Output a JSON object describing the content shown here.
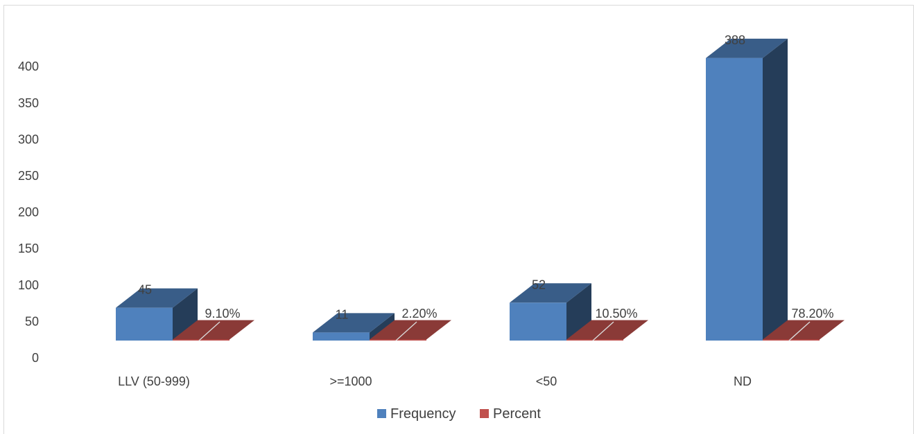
{
  "chart_data": {
    "type": "bar",
    "style": "3d-clustered-column",
    "title": "",
    "xlabel": "",
    "ylabel": "",
    "categories": [
      "LLV (50-999)",
      ">=1000",
      "<50",
      "ND"
    ],
    "series": [
      {
        "name": "Frequency",
        "color": "#4F81BD",
        "values": [
          45,
          11,
          52,
          388
        ],
        "labels": [
          "45",
          "11",
          "52",
          "388"
        ]
      },
      {
        "name": "Percent",
        "color": "#C0504D",
        "values": [
          0.091,
          0.022,
          0.105,
          0.782
        ],
        "labels": [
          "9.10%",
          "2.20%",
          "10.50%",
          "78.20%"
        ]
      }
    ],
    "ylim": [
      0,
      400
    ],
    "y_ticks": [
      0,
      50,
      100,
      150,
      200,
      250,
      300,
      350,
      400
    ],
    "y_tick_labels": [
      "0",
      "50",
      "100",
      "150",
      "200",
      "250",
      "300",
      "350",
      "400"
    ],
    "grid": false,
    "legend": "bottom"
  }
}
